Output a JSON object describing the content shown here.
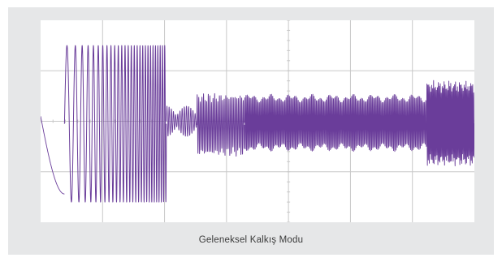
{
  "caption": "Geleneksel Kalkış Modu",
  "colors": {
    "card_background": "#e6e7e8",
    "plot_background": "#ffffff",
    "grid": "#c8c8c8",
    "trace": "#6a3d9a"
  },
  "chart_data": {
    "type": "line",
    "title": "",
    "xlabel": "",
    "ylabel": "",
    "grid": true,
    "legend": "none",
    "x_divisions": 7,
    "y_divisions": 4,
    "xlim": [
      0,
      1
    ],
    "ylim": [
      -1,
      1
    ],
    "series": [
      {
        "color": "#6a3d9a",
        "segments": [
          {
            "x_start": 0.0,
            "x_end": 0.055,
            "shape": "sweep",
            "y_from": 0.05,
            "y_to": -0.72,
            "cycles": 0.5
          },
          {
            "x_start": 0.055,
            "x_end": 0.29,
            "shape": "chirp",
            "y_min": -0.8,
            "y_max": 0.75,
            "cycles": 28
          },
          {
            "x_start": 0.29,
            "x_end": 0.36,
            "shape": "beat",
            "y_min": -0.15,
            "y_max": 0.15,
            "cycles": 14
          },
          {
            "x_start": 0.36,
            "x_end": 0.47,
            "shape": "burst",
            "y_min": -0.35,
            "y_max": 0.28,
            "cycles": 30
          },
          {
            "x_start": 0.47,
            "x_end": 0.89,
            "shape": "burst",
            "y_min": -0.3,
            "y_max": 0.27,
            "cycles": 150
          },
          {
            "x_start": 0.89,
            "x_end": 1.0,
            "shape": "burst",
            "y_min": -0.45,
            "y_max": 0.41,
            "cycles": 50
          }
        ]
      }
    ]
  }
}
